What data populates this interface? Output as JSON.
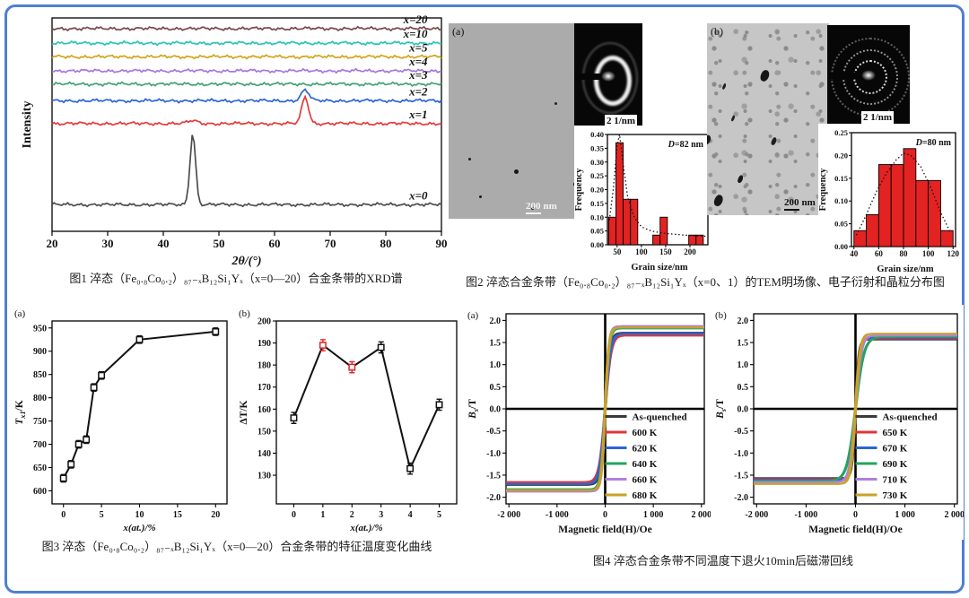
{
  "page": {
    "border_color": "#4f7fd0",
    "background": "#ffffff"
  },
  "captions": {
    "fig1": "图1 淬态（Fe₀.₈Co₀.₂）₈₇₋ₓB₁₂Si₁Yₓ（x=0—20）合金条带的XRD谱",
    "fig2": "图2 淬态合金条带（Fe₀.₈Co₀.₂）₈₇₋ₓB₁₂Si₁Yₓ（x=0、1）的TEM明场像、电子衍射和晶粒分布图",
    "fig3": "图3 淬态（Fe₀.₈Co₀.₂）₈₇₋ₓB₁₂Si₁Yₓ（x=0—20）合金条带的特征温度变化曲线",
    "fig4": "图4 淬态合金条带不同温度下退火10min后磁滞回线"
  },
  "tem": {
    "a": {
      "panel": "(a)",
      "scale_num": "200",
      "scale_unit": "nm",
      "diff_scale": "2 1/nm"
    },
    "b": {
      "panel": "(b)",
      "scale_num": "200",
      "scale_unit": "nm",
      "diff_scale": "2 1/nm"
    }
  },
  "chart_data": [
    {
      "id": "xrd",
      "type": "xrd",
      "title": "",
      "xlabel": "2θ/(°)",
      "ylabel": "Intensity",
      "xlim": [
        20,
        90
      ],
      "xticks": [
        20,
        30,
        40,
        50,
        60,
        70,
        80,
        90
      ],
      "legend_position": "right-of-each-trace",
      "grid": false,
      "series": [
        {
          "name": "x=20",
          "color": "#7a4848",
          "baseline": 0.95,
          "peaks": []
        },
        {
          "name": "x=10",
          "color": "#29c4b9",
          "baseline": 0.882,
          "peaks": []
        },
        {
          "name": "x=5",
          "color": "#d2a51b",
          "baseline": 0.818,
          "peaks": []
        },
        {
          "name": "x=4",
          "color": "#a876dd",
          "baseline": 0.752,
          "peaks": []
        },
        {
          "name": "x=3",
          "color": "#43a271",
          "baseline": 0.69,
          "peaks": []
        },
        {
          "name": "x=2",
          "color": "#2d64d8",
          "baseline": 0.612,
          "peaks": [
            {
              "center": 65.5,
              "height": 0.05,
              "width": 0.7
            }
          ]
        },
        {
          "name": "x=1",
          "color": "#e53a3c",
          "baseline": 0.505,
          "peaks": [
            {
              "center": 45.3,
              "height": 0.014,
              "width": 0.8
            },
            {
              "center": 65.5,
              "height": 0.125,
              "width": 0.6
            }
          ]
        },
        {
          "name": "x=0",
          "color": "#4d4d4d",
          "baseline": 0.125,
          "peaks": [
            {
              "center": 45.3,
              "height": 0.335,
              "width": 0.5
            }
          ]
        }
      ]
    },
    {
      "id": "hist_a",
      "type": "histogram",
      "xlabel": "Grain size/nm",
      "ylabel": "Frequency",
      "annotation_italic": "D",
      "annotation_rest": "=82 nm",
      "xlim": [
        30,
        237
      ],
      "xticks": [
        50,
        100,
        150,
        200
      ],
      "ylim": [
        0,
        0.4
      ],
      "ytick_step": 0.05,
      "bin_width": 15,
      "bar_color": "#e32222",
      "bars": [
        {
          "x": 40,
          "h": 0.1
        },
        {
          "x": 55,
          "h": 0.37
        },
        {
          "x": 70,
          "h": 0.165
        },
        {
          "x": 85,
          "h": 0.165
        },
        {
          "x": 131,
          "h": 0.035
        },
        {
          "x": 146,
          "h": 0.1
        },
        {
          "x": 205,
          "h": 0.035
        },
        {
          "x": 220,
          "h": 0.035
        }
      ],
      "fit_curve": [
        [
          34,
          0.09
        ],
        [
          42,
          0.2
        ],
        [
          50,
          0.36
        ],
        [
          55,
          0.4
        ],
        [
          62,
          0.3
        ],
        [
          72,
          0.17
        ],
        [
          85,
          0.1
        ],
        [
          100,
          0.065
        ],
        [
          120,
          0.05
        ],
        [
          145,
          0.042
        ],
        [
          175,
          0.037
        ],
        [
          205,
          0.033
        ],
        [
          232,
          0.031
        ]
      ]
    },
    {
      "id": "hist_b",
      "type": "histogram",
      "xlabel": "Grain size/nm",
      "ylabel": "Frequency",
      "annotation_italic": "D",
      "annotation_rest": "=80 nm",
      "xlim": [
        38,
        122
      ],
      "xticks": [
        40,
        60,
        80,
        100,
        120
      ],
      "ylim": [
        0,
        0.25
      ],
      "ytick_step": 0.05,
      "bin_width": 10,
      "bar_color": "#e32222",
      "bars": [
        {
          "x": 45,
          "h": 0.035
        },
        {
          "x": 55,
          "h": 0.07
        },
        {
          "x": 65,
          "h": 0.18
        },
        {
          "x": 75,
          "h": 0.18
        },
        {
          "x": 85,
          "h": 0.215
        },
        {
          "x": 95,
          "h": 0.145
        },
        {
          "x": 105,
          "h": 0.145
        },
        {
          "x": 115,
          "h": 0.035
        }
      ],
      "fit_curve": [
        [
          42,
          0.025
        ],
        [
          50,
          0.07
        ],
        [
          58,
          0.12
        ],
        [
          66,
          0.16
        ],
        [
          74,
          0.19
        ],
        [
          80,
          0.205
        ],
        [
          86,
          0.2
        ],
        [
          94,
          0.175
        ],
        [
          102,
          0.13
        ],
        [
          110,
          0.075
        ],
        [
          118,
          0.03
        ]
      ]
    },
    {
      "id": "fig3a",
      "type": "scatterline",
      "panel": "(a)",
      "xlabel": "x(at.)/%",
      "ylabel": "T_{x1}/K",
      "xlim": [
        -1.5,
        21.5
      ],
      "xticks": [
        0,
        5,
        10,
        15,
        20
      ],
      "ylim": [
        572,
        965
      ],
      "yticks": [
        600,
        650,
        700,
        750,
        800,
        850,
        900,
        950
      ],
      "x": [
        0,
        1,
        2,
        3,
        4,
        5,
        10,
        20
      ],
      "y": [
        627,
        657,
        700,
        710,
        822,
        848,
        925,
        942
      ],
      "err": 8,
      "color": "#111111",
      "marker": "open-square"
    },
    {
      "id": "fig3b",
      "type": "scatterline",
      "panel": "(b)",
      "xlabel": "x(at.)/%",
      "ylabel": "ΔT/K",
      "xlim": [
        -0.6,
        5.6
      ],
      "xticks": [
        0,
        1,
        2,
        3,
        4,
        5
      ],
      "ylim": [
        117,
        200
      ],
      "yticks": [
        130,
        140,
        150,
        160,
        170,
        180,
        190,
        200
      ],
      "x": [
        0,
        1,
        2,
        3,
        4,
        5
      ],
      "y": [
        156,
        189,
        179,
        188,
        133,
        162
      ],
      "err": 2.5,
      "color": "#111111",
      "marker": "open-square",
      "point_colors": [
        "#111111",
        "#e02424",
        "#e02424",
        "#111111",
        "#111111",
        "#111111"
      ]
    },
    {
      "id": "fig4a",
      "type": "hysteresis",
      "panel": "(a)",
      "xlabel": "Magnetic field(H)/Oe",
      "ylabel": "B_{s}/T",
      "xlim": [
        -2060,
        2060
      ],
      "xticks": [
        -2000,
        -1000,
        0,
        1000,
        2000
      ],
      "xtick_labels": [
        "-2 000",
        "-1 000",
        "0",
        "1 000",
        "2 000"
      ],
      "ylim": [
        -2.15,
        2.15
      ],
      "yticks": [
        -2.0,
        -1.5,
        -1.0,
        -0.5,
        0.0,
        0.5,
        1.0,
        1.5,
        2.0
      ],
      "coercivity": 12,
      "legend_position": "lower-right",
      "series": [
        {
          "name": "As-quenched",
          "color": "#3a3a3a",
          "saturation": 1.72,
          "width": 100
        },
        {
          "name": "600 K",
          "color": "#e03438",
          "saturation": 1.66,
          "width": 120
        },
        {
          "name": "620 K",
          "color": "#2d64d8",
          "saturation": 1.7,
          "width": 110
        },
        {
          "name": "640 K",
          "color": "#23a45f",
          "saturation": 1.82,
          "width": 85
        },
        {
          "name": "660 K",
          "color": "#b07fe0",
          "saturation": 1.87,
          "width": 80
        },
        {
          "name": "680 K",
          "color": "#c9a227",
          "saturation": 1.84,
          "width": 78
        }
      ]
    },
    {
      "id": "fig4b",
      "type": "hysteresis",
      "panel": "(b)",
      "xlabel": "Magnetic field(H)/Oe",
      "ylabel": "B_{s}/T",
      "xlim": [
        -2060,
        2060
      ],
      "xticks": [
        -2000,
        -1000,
        0,
        1000,
        2000
      ],
      "xtick_labels": [
        "-2 000",
        "-1 000",
        "0",
        "1 000",
        "2 000"
      ],
      "ylim": [
        -2.15,
        2.15
      ],
      "yticks": [
        -2.0,
        -1.5,
        -1.0,
        -0.5,
        0.0,
        0.5,
        1.0,
        1.5,
        2.0
      ],
      "coercivity": 12,
      "legend_position": "lower-right",
      "series": [
        {
          "name": "As-quenched",
          "color": "#3a3a3a",
          "saturation": 1.57,
          "width": 70
        },
        {
          "name": "650 K",
          "color": "#e03438",
          "saturation": 1.59,
          "width": 85
        },
        {
          "name": "670 K",
          "color": "#2d64d8",
          "saturation": 1.61,
          "width": 90
        },
        {
          "name": "690 K",
          "color": "#23a45f",
          "saturation": 1.63,
          "width": 170
        },
        {
          "name": "710 K",
          "color": "#b07fe0",
          "saturation": 1.66,
          "width": 115
        },
        {
          "name": "730 K",
          "color": "#c9a227",
          "saturation": 1.7,
          "width": 95
        }
      ]
    }
  ]
}
